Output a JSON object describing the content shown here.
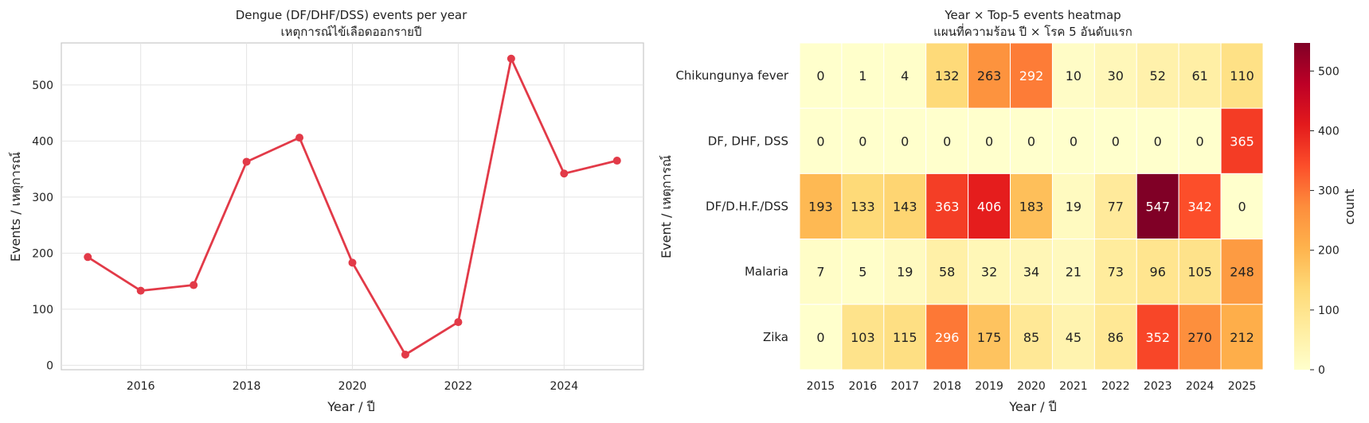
{
  "chart_data": [
    {
      "type": "line",
      "title": "Dengue (DF/DHF/DSS) events per year",
      "subtitle": "เหตุการณ์ไข้เลือดออกรายปี",
      "xlabel": "Year / ปี",
      "ylabel": "Events / เหตุการณ์",
      "x": [
        2015,
        2016,
        2017,
        2018,
        2019,
        2020,
        2021,
        2022,
        2023,
        2024,
        2025
      ],
      "values": [
        193,
        133,
        143,
        363,
        406,
        183,
        19,
        77,
        547,
        342,
        365
      ],
      "xticks": [
        2016,
        2018,
        2020,
        2022,
        2024
      ],
      "yticks": [
        0,
        100,
        200,
        300,
        400,
        500
      ],
      "xlim": [
        2014.5,
        2025.5
      ],
      "ylim": [
        -8,
        575
      ],
      "grid": true,
      "color": "#e23a48"
    },
    {
      "type": "heatmap",
      "title": "Year × Top-5 events heatmap",
      "subtitle": "แผนที่ความร้อน ปี × โรค 5 อันดับแรก",
      "xlabel": "Year / ปี",
      "ylabel": "Event / เหตุการณ์",
      "x": [
        "2015",
        "2016",
        "2017",
        "2018",
        "2019",
        "2020",
        "2021",
        "2022",
        "2023",
        "2024",
        "2025"
      ],
      "y": [
        "Chikungunya fever",
        "DF, DHF, DSS",
        "DF/D.H.F./DSS",
        "Malaria",
        "Zika"
      ],
      "values": [
        [
          0,
          1,
          4,
          132,
          263,
          292,
          10,
          30,
          52,
          61,
          110
        ],
        [
          0,
          0,
          0,
          0,
          0,
          0,
          0,
          0,
          0,
          0,
          365
        ],
        [
          193,
          133,
          143,
          363,
          406,
          183,
          19,
          77,
          547,
          342,
          0
        ],
        [
          7,
          5,
          19,
          58,
          32,
          34,
          21,
          73,
          96,
          105,
          248
        ],
        [
          0,
          103,
          115,
          296,
          175,
          85,
          45,
          86,
          352,
          270,
          212
        ]
      ],
      "colorbar": {
        "label": "count",
        "ticks": [
          0,
          100,
          200,
          300,
          400,
          500
        ],
        "min": 0,
        "max": 547
      },
      "colormap": "YlOrRd"
    }
  ]
}
